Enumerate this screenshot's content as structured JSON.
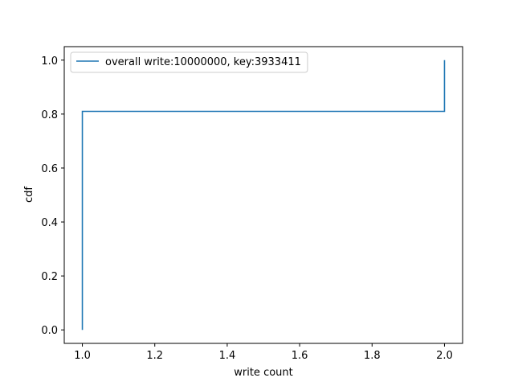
{
  "chart_data": {
    "type": "line",
    "xlabel": "write count",
    "ylabel": "cdf",
    "xlim": [
      0.95,
      2.05
    ],
    "ylim": [
      -0.05,
      1.05
    ],
    "xticks": [
      1.0,
      1.2,
      1.4,
      1.6,
      1.8,
      2.0
    ],
    "xtick_labels": [
      "1.0",
      "1.2",
      "1.4",
      "1.6",
      "1.8",
      "2.0"
    ],
    "yticks": [
      0.0,
      0.2,
      0.4,
      0.6,
      0.8,
      1.0
    ],
    "ytick_labels": [
      "0.0",
      "0.2",
      "0.4",
      "0.6",
      "0.8",
      "1.0"
    ],
    "grid": false,
    "legend_position": "upper-left",
    "series": [
      {
        "name": "overall write:10000000, key:3933411",
        "color": "#1f77b4",
        "x": [
          1.0,
          1.0,
          2.0,
          2.0
        ],
        "y": [
          0.0,
          0.81,
          0.81,
          1.0
        ]
      }
    ]
  }
}
